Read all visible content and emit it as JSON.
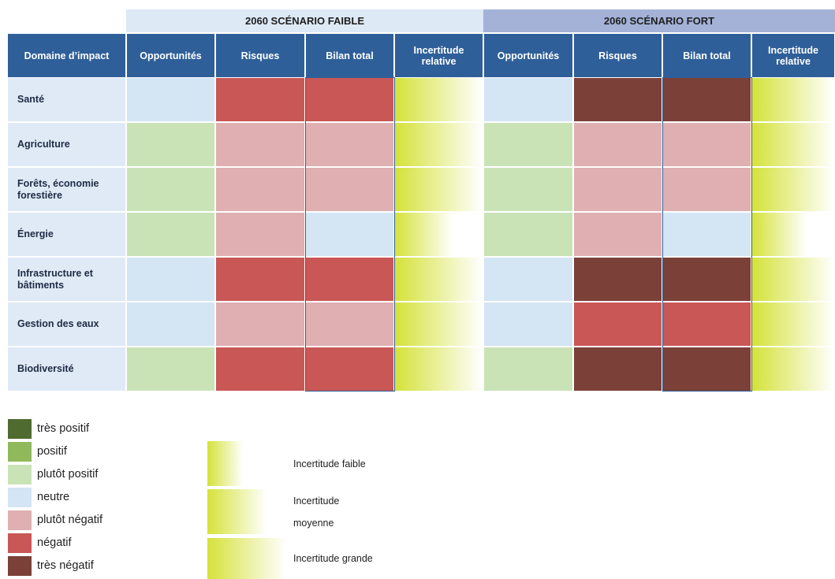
{
  "groups": [
    {
      "title": "2060 SCÉNARIO FAIBLE",
      "color": "#dde9f5"
    },
    {
      "title": "2060 SCÉNARIO FORT",
      "color": "#a4b2d8"
    }
  ],
  "columns": [
    "Domaine d’impact",
    "Opportunités",
    "Risques",
    "Bilan total",
    "Incertitude relative",
    "Opportunités",
    "Risques",
    "Bilan total",
    "Incertitude relative"
  ],
  "rows": [
    {
      "label": "Santé",
      "faible": [
        3,
        5,
        5
      ],
      "fort": [
        3,
        6,
        6
      ],
      "uncertainty": [
        2,
        2
      ]
    },
    {
      "label": "Agriculture",
      "faible": [
        2,
        4,
        4
      ],
      "fort": [
        2,
        4,
        4
      ],
      "uncertainty": [
        2,
        2
      ]
    },
    {
      "label": "Forêts, économie forestière",
      "faible": [
        2,
        4,
        4
      ],
      "fort": [
        2,
        4,
        4
      ],
      "uncertainty": [
        2,
        2
      ]
    },
    {
      "label": "Énergie",
      "faible": [
        2,
        4,
        3
      ],
      "fort": [
        2,
        4,
        3
      ],
      "uncertainty": [
        1,
        1
      ]
    },
    {
      "label": "Infrastructure et bâtiments",
      "faible": [
        3,
        5,
        5
      ],
      "fort": [
        3,
        6,
        6
      ],
      "uncertainty": [
        2,
        2
      ]
    },
    {
      "label": "Gestion des eaux",
      "faible": [
        3,
        4,
        4
      ],
      "fort": [
        3,
        5,
        5
      ],
      "uncertainty": [
        2,
        2
      ]
    },
    {
      "label": "Biodiversité",
      "faible": [
        2,
        5,
        5
      ],
      "fort": [
        2,
        6,
        6
      ],
      "uncertainty": [
        2,
        2
      ]
    }
  ],
  "legend": [
    {
      "label": "très positif",
      "color": "#4f6b30"
    },
    {
      "label": "positif",
      "color": "#8fb95b"
    },
    {
      "label": "plutôt positif",
      "color": "#c9e3b6"
    },
    {
      "label": "neutre",
      "color": "#d4e5f4"
    },
    {
      "label": "plutôt négatif",
      "color": "#e0afb1"
    },
    {
      "label": "négatif",
      "color": "#c95756"
    },
    {
      "label": "très négatif",
      "color": "#7b4038"
    }
  ],
  "uncertainty_color": "#d5e23a",
  "uncertainty_legend": [
    {
      "lines": [
        "Incertitude faible"
      ]
    },
    {
      "lines": [
        "Incertitude",
        "moyenne"
      ]
    },
    {
      "lines": [
        "Incertitude grande"
      ]
    }
  ]
}
